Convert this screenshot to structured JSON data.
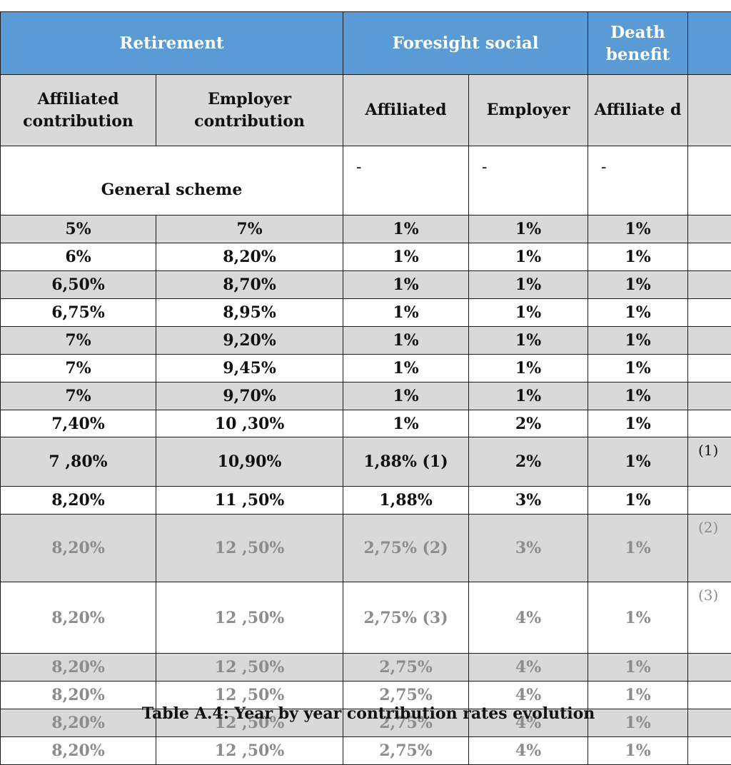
{
  "header": {
    "groups": [
      "Retirement",
      "Foresight social",
      "Death benefit",
      ""
    ],
    "columns": [
      "Affiliated contribution",
      "Employer contribution",
      "Affiliated",
      "Employer",
      "Affiliate d",
      ""
    ]
  },
  "general_scheme": {
    "label": "General scheme",
    "dashes": [
      "-",
      "-",
      "-"
    ]
  },
  "rows": [
    {
      "cells": [
        "5%",
        "7%",
        "1%",
        "1%",
        "1%"
      ],
      "note": ""
    },
    {
      "cells": [
        "6%",
        "8,20%",
        "1%",
        "1%",
        "1%"
      ],
      "note": ""
    },
    {
      "cells": [
        "6,50%",
        "8,70%",
        "1%",
        "1%",
        "1%"
      ],
      "note": ""
    },
    {
      "cells": [
        "6,75%",
        "8,95%",
        "1%",
        "1%",
        "1%"
      ],
      "note": ""
    },
    {
      "cells": [
        "7%",
        "9,20%",
        "1%",
        "1%",
        "1%"
      ],
      "note": ""
    },
    {
      "cells": [
        "7%",
        "9,45%",
        "1%",
        "1%",
        "1%"
      ],
      "note": ""
    },
    {
      "cells": [
        "7%",
        "9,70%",
        "1%",
        "1%",
        "1%"
      ],
      "note": ""
    },
    {
      "cells": [
        "7,40%",
        "10 ,30%",
        "1%",
        "2%",
        "1%"
      ],
      "note": ""
    },
    {
      "cells": [
        "7 ,80%",
        "10,90%",
        "1,88% (1)",
        "2%",
        "1%"
      ],
      "note": "(1)"
    },
    {
      "cells": [
        "8,20%",
        "11 ,50%",
        "1,88%",
        "3%",
        "1%"
      ],
      "note": ""
    },
    {
      "cells": [
        "8,20%",
        "12 ,50%",
        "2,75% (2)",
        "3%",
        "1%"
      ],
      "note": "(2)"
    },
    {
      "cells": [
        "8,20%",
        "12 ,50%",
        "2,75% (3)",
        "4%",
        "1%"
      ],
      "note": "(3)"
    },
    {
      "cells": [
        "8,20%",
        "12 ,50%",
        "2,75%",
        "4%",
        "1%"
      ],
      "note": ""
    },
    {
      "cells": [
        "8,20%",
        "12 ,50%",
        "2,75%",
        "4%",
        "1%"
      ],
      "note": ""
    },
    {
      "cells": [
        "8,20%",
        "12 ,50%",
        "2,75%",
        "4%",
        "1%"
      ],
      "note": ""
    },
    {
      "cells": [
        "8,20%",
        "12 ,50%",
        "2,75%",
        "4%",
        "1%"
      ],
      "note": ""
    }
  ],
  "caption": "Table A.4: Year by year contribution rates evolution",
  "colors": {
    "header_band": "#5b9bd5",
    "shade": "#d9d9d9",
    "faded_text": "#8c8c8c"
  }
}
